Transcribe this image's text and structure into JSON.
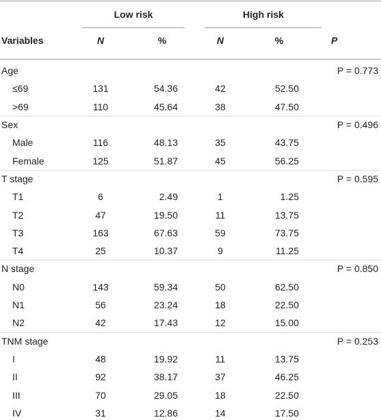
{
  "header": {
    "groups": [
      "Low risk",
      "High risk"
    ],
    "columns": [
      "Variables",
      "N",
      "%",
      "N",
      "%",
      "P"
    ]
  },
  "groups": [
    {
      "label": "Age",
      "p": "P = 0.773",
      "rows": [
        {
          "label": "≤69",
          "values": [
            "131",
            "54.36",
            "42",
            "52.50"
          ]
        },
        {
          "label": ">69",
          "values": [
            "110",
            "45.64",
            "38",
            "47.50"
          ]
        }
      ]
    },
    {
      "label": "Sex",
      "p": "P = 0.496",
      "rows": [
        {
          "label": "Male",
          "values": [
            "116",
            "48.13",
            "35",
            "43.75"
          ]
        },
        {
          "label": "Female",
          "values": [
            "125",
            "51.87",
            "45",
            "56.25"
          ]
        }
      ]
    },
    {
      "label": "T stage",
      "p": "P = 0.595",
      "rows": [
        {
          "label": "T1",
          "values": [
            "6",
            "2.49",
            "1",
            "1.25"
          ]
        },
        {
          "label": "T2",
          "values": [
            "47",
            "19.50",
            "11",
            "13.75"
          ]
        },
        {
          "label": "T3",
          "values": [
            "163",
            "67.63",
            "59",
            "73.75"
          ]
        },
        {
          "label": "T4",
          "values": [
            "25",
            "10.37",
            "9",
            "11.25"
          ]
        }
      ]
    },
    {
      "label": "N stage",
      "p": "P = 0.850",
      "rows": [
        {
          "label": "N0",
          "values": [
            "143",
            "59.34",
            "50",
            "62.50"
          ]
        },
        {
          "label": "N1",
          "values": [
            "56",
            "23.24",
            "18",
            "22.50"
          ]
        },
        {
          "label": "N2",
          "values": [
            "42",
            "17.43",
            "12",
            "15.00"
          ]
        }
      ]
    },
    {
      "label": "TNM stage",
      "p": "P = 0.253",
      "rows": [
        {
          "label": "I",
          "values": [
            "48",
            "19.92",
            "11",
            "13.75"
          ]
        },
        {
          "label": "II",
          "values": [
            "92",
            "38.17",
            "37",
            "46.25"
          ]
        },
        {
          "label": "III",
          "values": [
            "70",
            "29.05",
            "18",
            "22.50"
          ]
        },
        {
          "label": "IV",
          "values": [
            "31",
            "12.86",
            "14",
            "17.50"
          ]
        }
      ]
    }
  ]
}
